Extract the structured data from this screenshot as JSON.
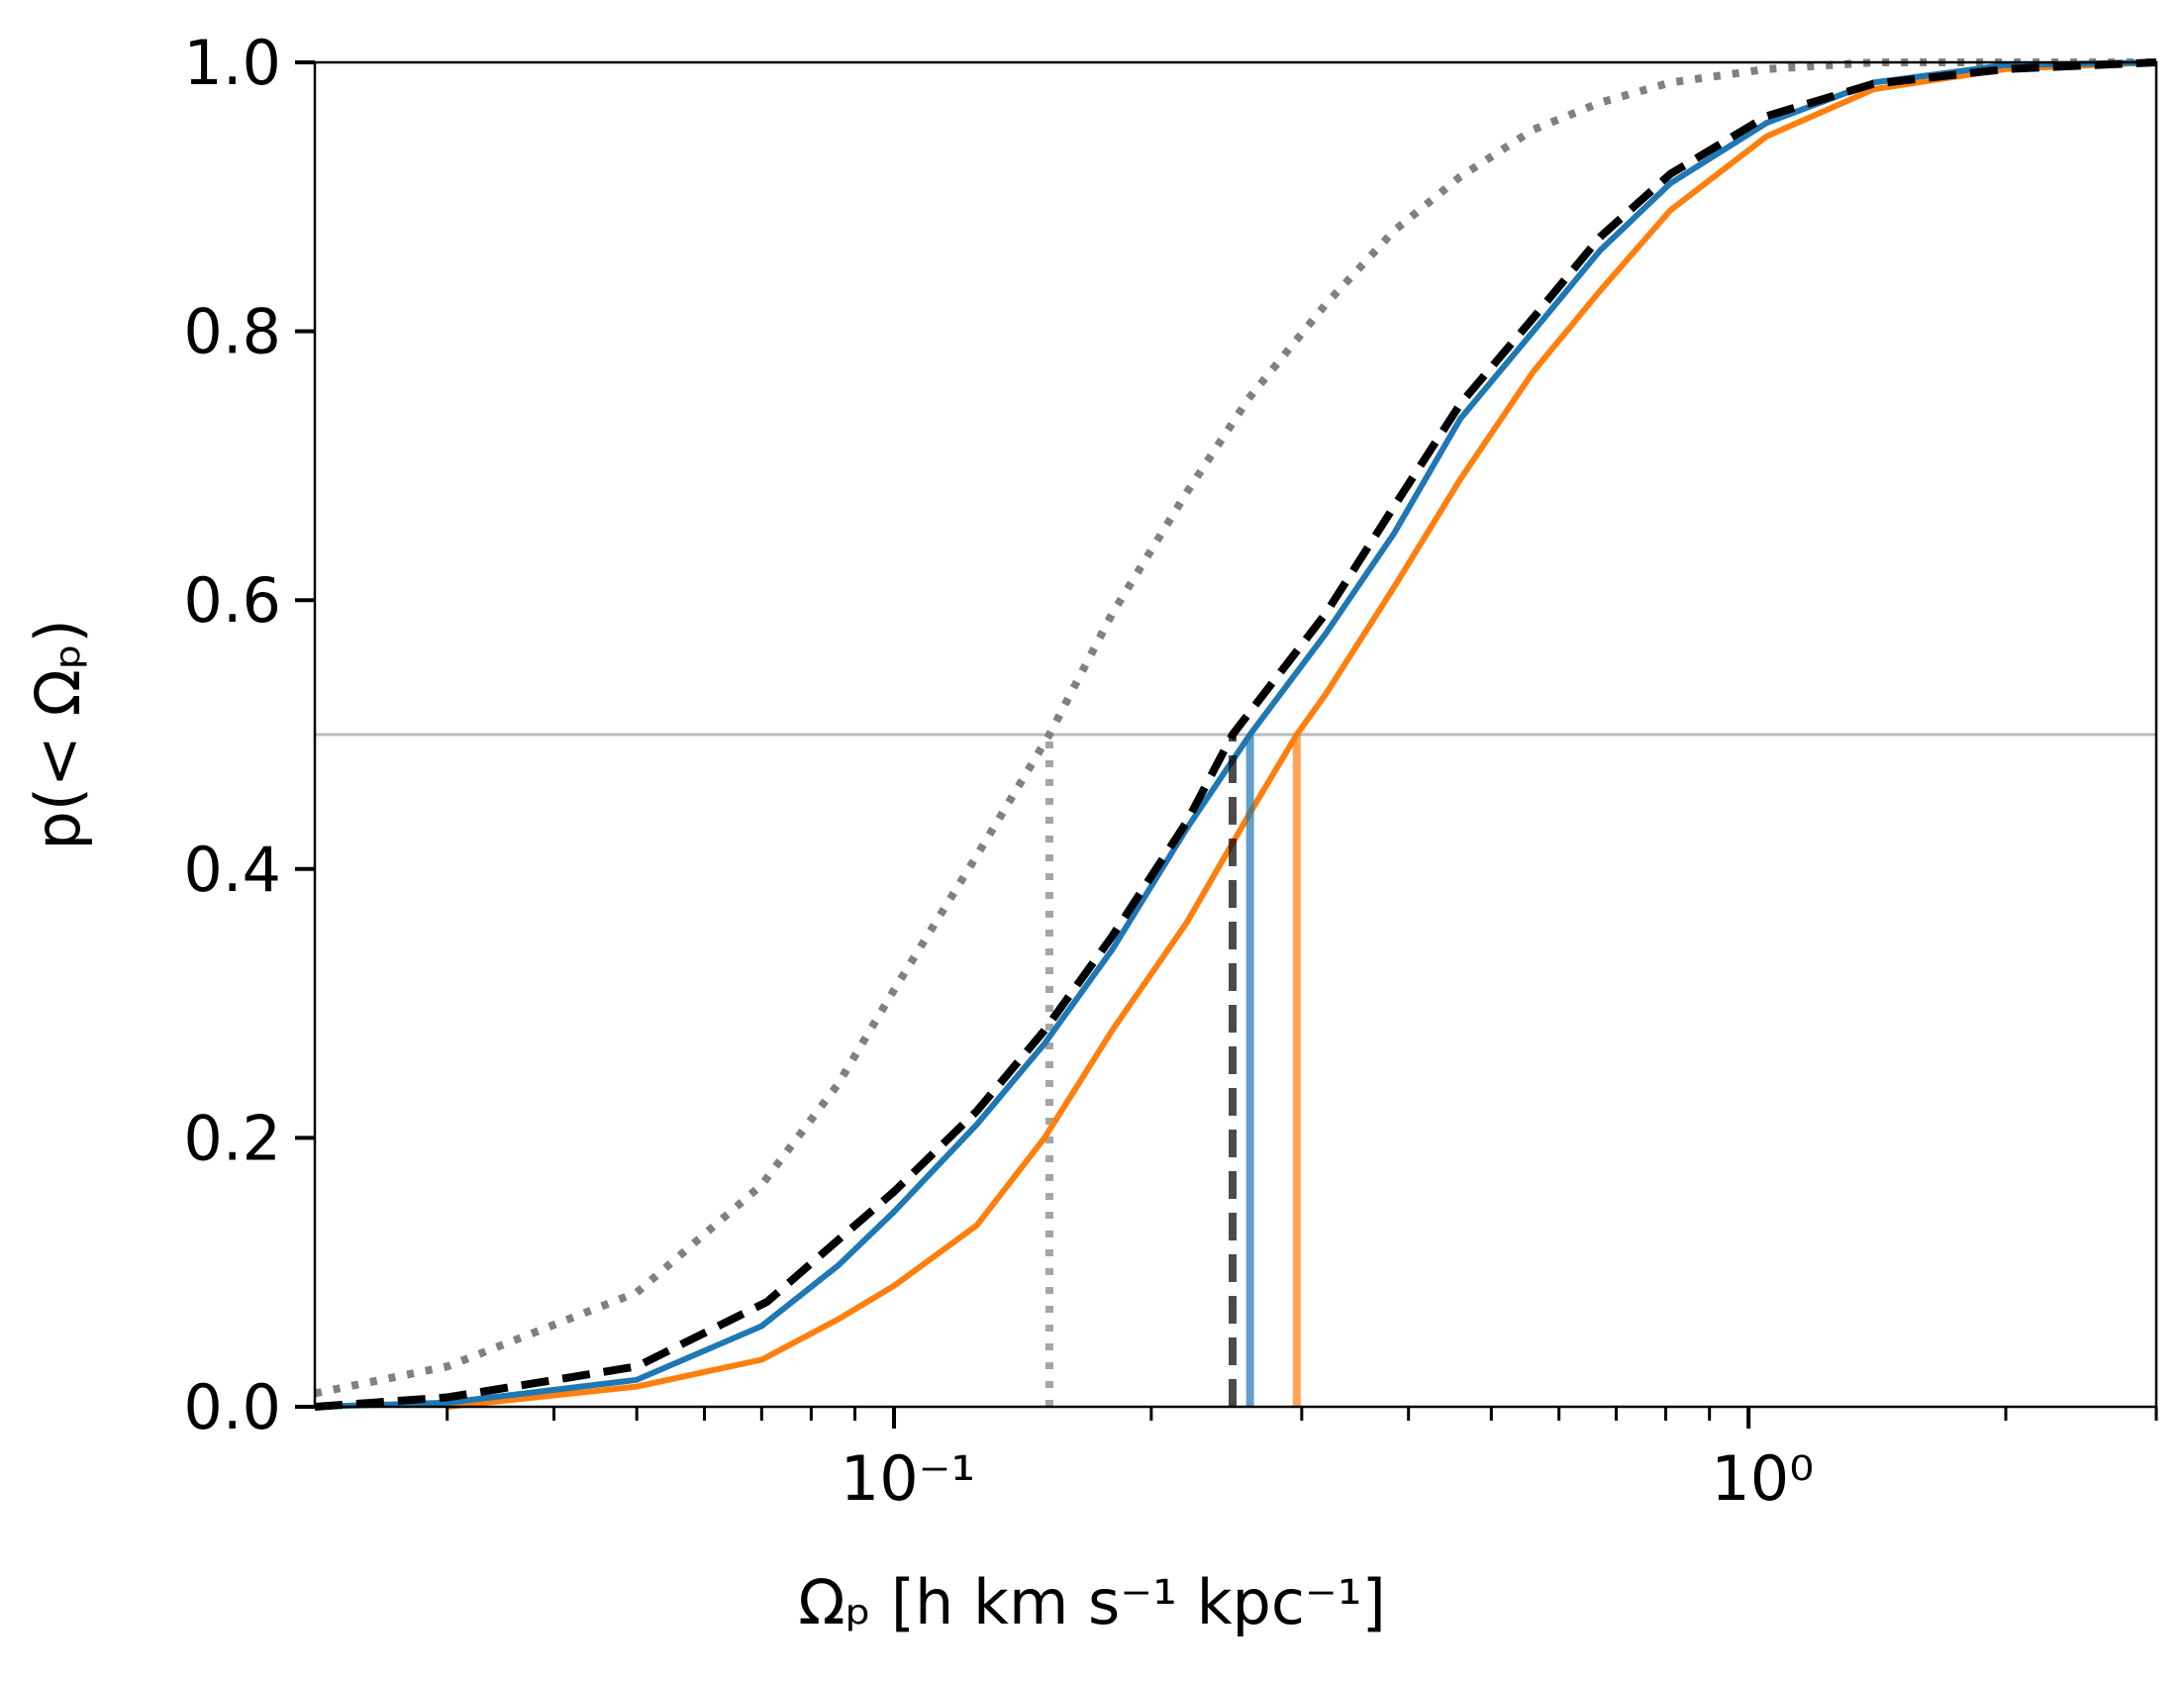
{
  "chart_data": {
    "type": "line",
    "xlabel": "Ωₚ [h km s⁻¹ kpc⁻¹]",
    "ylabel": "p(< Ωₚ)",
    "xscale": "log",
    "xlim": [
      0.021,
      3
    ],
    "ylim": [
      0,
      1
    ],
    "xticks": [
      {
        "value": 0.1,
        "label": "10⁻¹"
      },
      {
        "value": 1,
        "label": "10⁰"
      }
    ],
    "xticks_minor": [
      0.03,
      0.04,
      0.05,
      0.06,
      0.07,
      0.08,
      0.09,
      0.2,
      0.3,
      0.4,
      0.5,
      0.6,
      0.7,
      0.8,
      0.9,
      2,
      3
    ],
    "yticks": [
      {
        "value": 0,
        "label": "0.0"
      },
      0.2,
      0.4,
      0.6,
      0.8,
      {
        "value": 1,
        "label": "1.0"
      }
    ],
    "hline": 0.5,
    "grid": false,
    "series": [
      {
        "color": "#808080",
        "linestyle": "dotted",
        "median": 0.152,
        "x": [
          0.021,
          0.03,
          0.05,
          0.07,
          0.086,
          0.1,
          0.125,
          0.152,
          0.18,
          0.22,
          0.26,
          0.32,
          0.385,
          0.46,
          0.56,
          0.67,
          0.81,
          1.05,
          1.4,
          3
        ],
        "values": [
          0.01,
          0.03,
          0.085,
          0.165,
          0.24,
          0.31,
          0.41,
          0.5,
          0.59,
          0.68,
          0.75,
          0.82,
          0.875,
          0.915,
          0.95,
          0.97,
          0.985,
          0.995,
          1.0,
          1.0
        ]
      },
      {
        "color": "#ff7f0e",
        "linestyle": "solid",
        "median": 0.296,
        "x": [
          0.03,
          0.05,
          0.07,
          0.086,
          0.1,
          0.125,
          0.15,
          0.18,
          0.22,
          0.26,
          0.296,
          0.32,
          0.385,
          0.46,
          0.56,
          0.67,
          0.81,
          1.05,
          1.4,
          2.0,
          3
        ],
        "values": [
          0.0,
          0.015,
          0.035,
          0.065,
          0.09,
          0.135,
          0.2,
          0.28,
          0.36,
          0.44,
          0.5,
          0.53,
          0.61,
          0.69,
          0.77,
          0.83,
          0.89,
          0.945,
          0.98,
          0.995,
          1.0
        ]
      },
      {
        "color": "#1f77b4",
        "linestyle": "solid",
        "median": 0.261,
        "x": [
          0.021,
          0.03,
          0.05,
          0.07,
          0.086,
          0.1,
          0.125,
          0.15,
          0.18,
          0.22,
          0.261,
          0.32,
          0.385,
          0.46,
          0.56,
          0.67,
          0.81,
          1.05,
          1.4,
          2.0,
          3
        ],
        "values": [
          0.0,
          0.003,
          0.02,
          0.06,
          0.105,
          0.145,
          0.21,
          0.27,
          0.34,
          0.43,
          0.5,
          0.575,
          0.65,
          0.735,
          0.8,
          0.86,
          0.91,
          0.955,
          0.985,
          0.998,
          1.0
        ]
      },
      {
        "color": "#000000",
        "linestyle": "dashed",
        "median": 0.249,
        "x": [
          0.021,
          0.03,
          0.05,
          0.071,
          0.086,
          0.1,
          0.125,
          0.15,
          0.18,
          0.22,
          0.249,
          0.32,
          0.385,
          0.46,
          0.56,
          0.67,
          0.81,
          1.05,
          1.4,
          2.0,
          3
        ],
        "values": [
          0.0,
          0.007,
          0.03,
          0.078,
          0.124,
          0.16,
          0.22,
          0.28,
          0.35,
          0.435,
          0.5,
          0.59,
          0.67,
          0.746,
          0.81,
          0.87,
          0.917,
          0.96,
          0.984,
          0.995,
          1.0
        ]
      }
    ]
  }
}
